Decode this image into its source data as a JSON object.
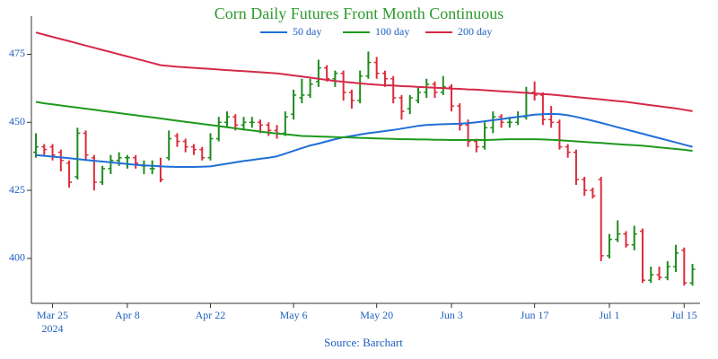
{
  "chart_data": {
    "type": "ohlc",
    "title": "Corn Daily Futures Front Month Continuous",
    "source": "Source: Barchart",
    "year_label": "2024",
    "categories": [
      null,
      null,
      "Mar 25",
      null,
      null,
      null,
      null,
      null,
      null,
      null,
      null,
      "Apr 8",
      null,
      null,
      null,
      null,
      null,
      null,
      null,
      null,
      null,
      "Apr 22",
      null,
      null,
      null,
      null,
      null,
      null,
      null,
      null,
      null,
      "May 6",
      null,
      null,
      null,
      null,
      null,
      null,
      null,
      null,
      null,
      "May 20",
      null,
      null,
      null,
      null,
      null,
      null,
      null,
      null,
      "Jun 3",
      null,
      null,
      null,
      null,
      null,
      null,
      null,
      null,
      null,
      "Jun 17",
      null,
      null,
      null,
      null,
      null,
      null,
      null,
      null,
      "Jul 1",
      null,
      null,
      null,
      null,
      null,
      null,
      null,
      null,
      "Jul 15",
      null
    ],
    "open": [
      439,
      441,
      441,
      439,
      435,
      430,
      446,
      437,
      428,
      433,
      436,
      437,
      437,
      434,
      433,
      434,
      437,
      445,
      443,
      441,
      440,
      437,
      444,
      450,
      452,
      449,
      450,
      450,
      449,
      447,
      446,
      453,
      459,
      460,
      465,
      470,
      466,
      468,
      461,
      458,
      467,
      472,
      468,
      466,
      459,
      455,
      458,
      461,
      464,
      461,
      463,
      456,
      449,
      443,
      441,
      448,
      452,
      450,
      450,
      452,
      461,
      460,
      451,
      450,
      441,
      439,
      429,
      425,
      429,
      401,
      407,
      409,
      405,
      410,
      392,
      394,
      393,
      397,
      403,
      391
    ],
    "high": [
      446,
      442,
      442,
      440,
      436,
      448,
      447,
      438,
      434,
      438,
      439,
      438,
      438,
      436,
      436,
      437,
      447,
      446,
      444,
      442,
      441,
      446,
      452,
      454,
      453,
      452,
      452,
      451,
      450,
      449,
      454,
      462,
      466,
      466,
      473,
      471,
      469,
      469,
      462,
      469,
      476,
      474,
      469,
      467,
      460,
      460,
      463,
      466,
      465,
      467,
      464,
      457,
      451,
      444,
      450,
      454,
      453,
      452,
      454,
      463,
      465,
      461,
      456,
      451,
      442,
      440,
      430,
      426,
      430,
      409,
      414,
      410,
      412,
      411,
      397,
      397,
      399,
      405,
      404,
      398
    ],
    "low": [
      437,
      438,
      436,
      432,
      426,
      429,
      436,
      425,
      427,
      431,
      434,
      433,
      433,
      431,
      431,
      428,
      436,
      441,
      439,
      438,
      436,
      436,
      443,
      448,
      447,
      447,
      448,
      446,
      445,
      444,
      445,
      451,
      457,
      459,
      463,
      465,
      463,
      458,
      455,
      457,
      466,
      466,
      463,
      457,
      451,
      453,
      457,
      459,
      459,
      460,
      454,
      447,
      441,
      439,
      440,
      446,
      448,
      448,
      449,
      451,
      458,
      449,
      448,
      440,
      437,
      427,
      423,
      422,
      399,
      400,
      406,
      404,
      403,
      391,
      391,
      392,
      392,
      395,
      390,
      390
    ],
    "close": [
      441,
      440,
      438,
      436,
      428,
      446,
      438,
      428,
      433,
      436,
      437,
      437,
      435,
      434,
      433,
      429,
      444,
      443,
      441,
      440,
      437,
      444,
      450,
      452,
      449,
      450,
      450,
      449,
      447,
      446,
      452,
      460,
      460,
      464,
      470,
      466,
      468,
      461,
      458,
      467,
      472,
      468,
      466,
      459,
      454,
      459,
      461,
      464,
      461,
      463,
      456,
      449,
      443,
      441,
      448,
      452,
      450,
      450,
      452,
      461,
      460,
      451,
      450,
      441,
      439,
      429,
      425,
      423,
      401,
      407,
      409,
      405,
      409,
      392,
      394,
      393,
      397,
      402,
      391,
      396
    ],
    "up_color": "#1e8c1e",
    "down_color": "#dc2c3c",
    "series": [
      {
        "name": "50 day",
        "color": "#1f6fd6",
        "values": [
          438,
          437.7,
          437.4,
          437.1,
          436.8,
          436.5,
          436.2,
          435.9,
          435.6,
          435.3,
          435,
          434.7,
          434.4,
          434.2,
          434,
          433.8,
          433.7,
          433.6,
          433.6,
          433.6,
          433.7,
          433.8,
          434.3,
          434.8,
          435.3,
          435.8,
          436.2,
          436.6,
          437,
          437.5,
          438.5,
          439.5,
          440.5,
          441.5,
          442.2,
          443,
          443.8,
          444.5,
          445,
          445.5,
          446,
          446.4,
          446.8,
          447.2,
          447.7,
          448.2,
          448.7,
          449,
          449.2,
          449.3,
          449.4,
          449.5,
          449.7,
          450,
          450.4,
          450.8,
          451.2,
          451.6,
          452,
          452.4,
          452.8,
          453,
          453.1,
          453,
          452.6,
          452,
          451.3,
          450.6,
          449.8,
          449,
          448.2,
          447.4,
          446.6,
          445.8,
          445,
          444.2,
          443.4,
          442.6,
          441.8,
          441
        ]
      },
      {
        "name": "100 day",
        "color": "#1e9a1e",
        "values": [
          457.5,
          457,
          456.6,
          456.2,
          455.8,
          455.4,
          455,
          454.6,
          454.2,
          453.8,
          453.4,
          453,
          452.6,
          452.2,
          451.8,
          451.4,
          451,
          450.6,
          450.2,
          449.8,
          449.4,
          449,
          448.6,
          448.2,
          447.8,
          447.4,
          447,
          446.6,
          446.2,
          445.9,
          445.6,
          445.3,
          445,
          444.9,
          444.8,
          444.7,
          444.6,
          444.5,
          444.4,
          444.3,
          444.2,
          444.1,
          444,
          443.9,
          443.8,
          443.8,
          443.7,
          443.7,
          443.6,
          443.6,
          443.5,
          443.5,
          443.5,
          443.5,
          443.5,
          443.6,
          443.7,
          443.8,
          443.8,
          443.8,
          443.8,
          443.7,
          443.6,
          443.4,
          443.2,
          443,
          442.8,
          442.6,
          442.4,
          442.2,
          442,
          441.8,
          441.6,
          441.4,
          441.1,
          440.8,
          440.5,
          440.2,
          439.9,
          439.5
        ]
      },
      {
        "name": "200 day",
        "color": "#d42a48",
        "values": [
          483,
          482.2,
          481.4,
          480.6,
          479.8,
          479,
          478.2,
          477.4,
          476.6,
          475.8,
          475,
          474.2,
          473.4,
          472.6,
          471.8,
          471,
          470.7,
          470.4,
          470.2,
          470,
          469.8,
          469.6,
          469.4,
          469.2,
          469,
          468.8,
          468.6,
          468.4,
          468.2,
          468,
          467.6,
          467.2,
          466.8,
          466.4,
          466,
          465.6,
          465.2,
          464.9,
          464.6,
          464.3,
          464,
          463.8,
          463.6,
          463.5,
          463.3,
          463.2,
          463,
          462.9,
          462.7,
          462.6,
          462.4,
          462.3,
          462.1,
          462,
          461.8,
          461.6,
          461.4,
          461.2,
          461,
          460.8,
          460.6,
          460.4,
          460.2,
          459.9,
          459.6,
          459.3,
          459,
          458.7,
          458.4,
          458.1,
          457.8,
          457.5,
          457.1,
          456.7,
          456.3,
          455.9,
          455.5,
          455.1,
          454.6,
          454.1
        ]
      }
    ],
    "ylim": [
      383.5,
      489
    ],
    "yticks": [
      400,
      425,
      450,
      475
    ],
    "grid": false,
    "legend": "top"
  }
}
